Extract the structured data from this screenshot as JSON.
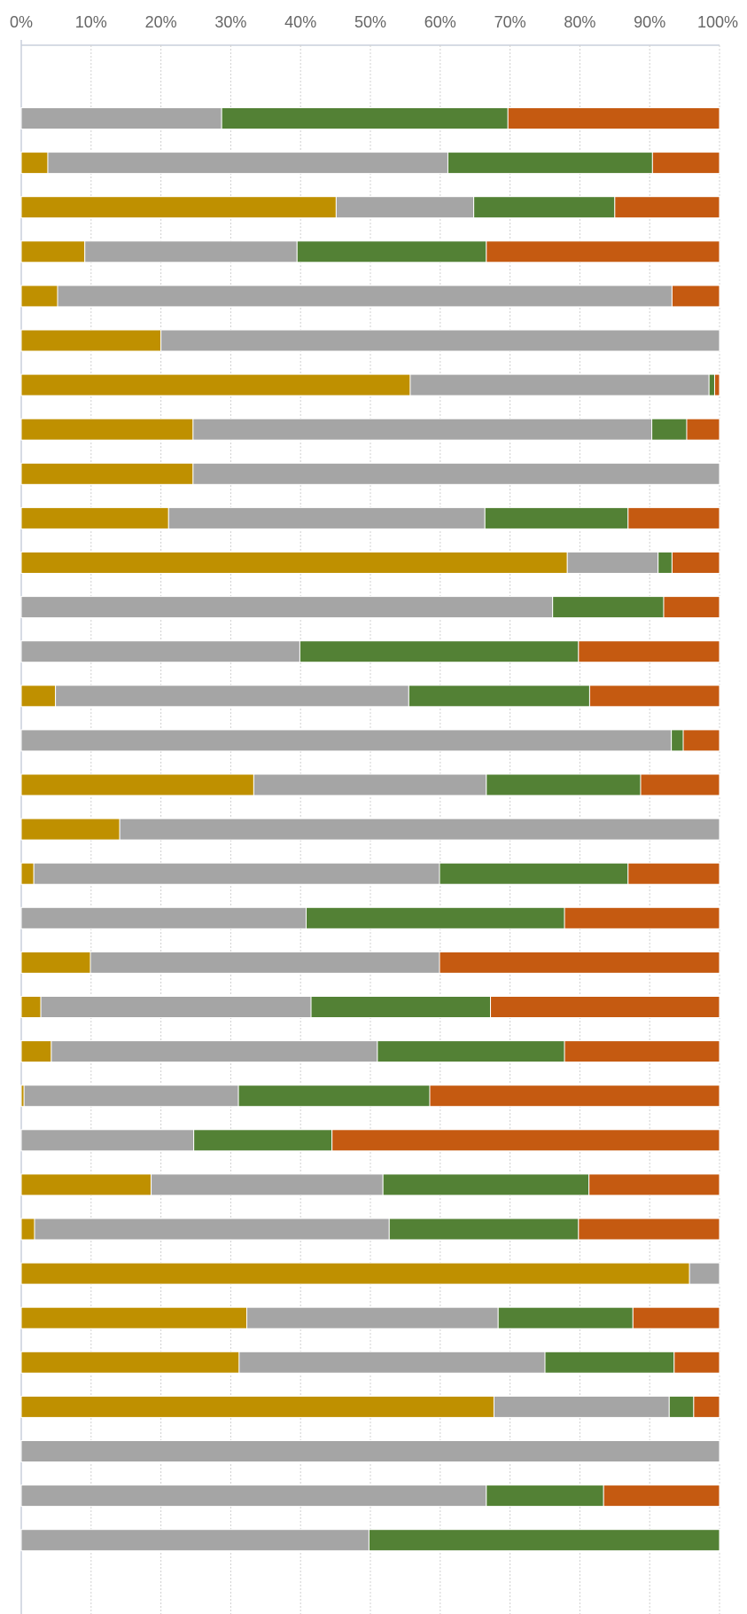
{
  "chart_data": {
    "type": "stacked-bar-horizontal",
    "xlim": [
      0,
      100
    ],
    "xticks": [
      {
        "value": 0,
        "label": "0%"
      },
      {
        "value": 10,
        "label": "10%"
      },
      {
        "value": 20,
        "label": "20%"
      },
      {
        "value": 30,
        "label": "30%"
      },
      {
        "value": 40,
        "label": "40%"
      },
      {
        "value": 50,
        "label": "50%"
      },
      {
        "value": 60,
        "label": "60%"
      },
      {
        "value": 70,
        "label": "70%"
      },
      {
        "value": 80,
        "label": "80%"
      },
      {
        "value": 90,
        "label": "90%"
      },
      {
        "value": 100,
        "label": "100%"
      }
    ],
    "grid": true,
    "series": [
      {
        "color": "#bf9000",
        "values": [
          0,
          3.8,
          45.1,
          9.1,
          5.2,
          20,
          55.7,
          24.6,
          24.6,
          21.1,
          78.2,
          0,
          0,
          4.9,
          0,
          33.3,
          14.1,
          1.8,
          0,
          9.9,
          2.8,
          4.3,
          0.4,
          0,
          18.6,
          1.9,
          95.7,
          32.3,
          31.2,
          67.7,
          0,
          0,
          0
        ]
      },
      {
        "color": "#a5a5a5",
        "values": [
          28.7,
          57.3,
          19.7,
          30.4,
          88,
          80,
          42.8,
          65.7,
          75.4,
          45.3,
          13,
          76.1,
          39.9,
          50.6,
          93.1,
          33.3,
          85.9,
          58.1,
          40.8,
          50,
          38.7,
          46.7,
          30.7,
          24.7,
          33.2,
          50.8,
          4.3,
          36,
          43.8,
          25.1,
          100,
          66.6,
          49.8
        ]
      },
      {
        "color": "#538135",
        "values": [
          41,
          29.3,
          20.2,
          27.1,
          0,
          0,
          0.8,
          5,
          0,
          20.5,
          2,
          15.9,
          39.9,
          25.9,
          1.7,
          22.1,
          0,
          27,
          37,
          0,
          25.7,
          26.8,
          27.4,
          19.8,
          29.5,
          27.1,
          0,
          19.3,
          18.5,
          3.5,
          0,
          16.8,
          50.2
        ]
      },
      {
        "color": "#c55a11",
        "values": [
          30.3,
          9.6,
          15,
          33.4,
          6.8,
          0,
          0.7,
          4.7,
          0,
          13.1,
          6.8,
          8,
          20.2,
          18.6,
          5.2,
          11.3,
          0,
          13.1,
          22.2,
          40.1,
          32.8,
          22.2,
          41.5,
          55.5,
          18.7,
          20.2,
          0,
          12.4,
          6.5,
          3.7,
          0,
          16.6,
          0
        ]
      }
    ]
  }
}
